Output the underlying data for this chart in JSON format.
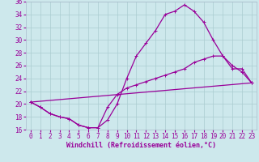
{
  "background_color": "#cde8ec",
  "grid_color": "#aaccd0",
  "line_color": "#990099",
  "xlabel": "Windchill (Refroidissement éolien,°C)",
  "xlim_min": -0.5,
  "xlim_max": 23.5,
  "ylim_min": 16,
  "ylim_max": 36,
  "xticks": [
    0,
    1,
    2,
    3,
    4,
    5,
    6,
    7,
    8,
    9,
    10,
    11,
    12,
    13,
    14,
    15,
    16,
    17,
    18,
    19,
    20,
    21,
    22,
    23
  ],
  "yticks": [
    16,
    18,
    20,
    22,
    24,
    26,
    28,
    30,
    32,
    34,
    36
  ],
  "curve1_x": [
    0,
    1,
    2,
    3,
    4,
    5,
    6,
    7,
    8,
    9,
    10,
    11,
    12,
    13,
    14,
    15,
    16,
    17,
    18,
    19,
    20,
    21,
    22,
    23
  ],
  "curve1_y": [
    20.3,
    19.5,
    18.5,
    18.0,
    17.7,
    16.7,
    16.3,
    16.3,
    17.5,
    20.0,
    24.0,
    27.5,
    29.5,
    31.5,
    34.0,
    34.5,
    35.5,
    34.5,
    32.8,
    30.0,
    27.5,
    26.0,
    25.0,
    23.3
  ],
  "curve2_x": [
    0,
    1,
    2,
    3,
    4,
    5,
    6,
    7,
    8,
    9,
    10,
    11,
    12,
    13,
    14,
    15,
    16,
    17,
    18,
    19,
    20,
    21,
    22,
    23
  ],
  "curve2_y": [
    20.3,
    19.5,
    18.5,
    18.0,
    17.7,
    16.7,
    16.3,
    16.3,
    19.5,
    21.5,
    22.5,
    23.0,
    23.5,
    24.0,
    24.5,
    25.0,
    25.5,
    26.5,
    27.0,
    27.5,
    27.5,
    25.5,
    25.5,
    23.3
  ],
  "curve3_x": [
    0,
    23
  ],
  "curve3_y": [
    20.3,
    23.3
  ],
  "linewidth": 0.9,
  "markersize": 2.5,
  "tick_fontsize": 5.5,
  "xlabel_fontsize": 6.0
}
